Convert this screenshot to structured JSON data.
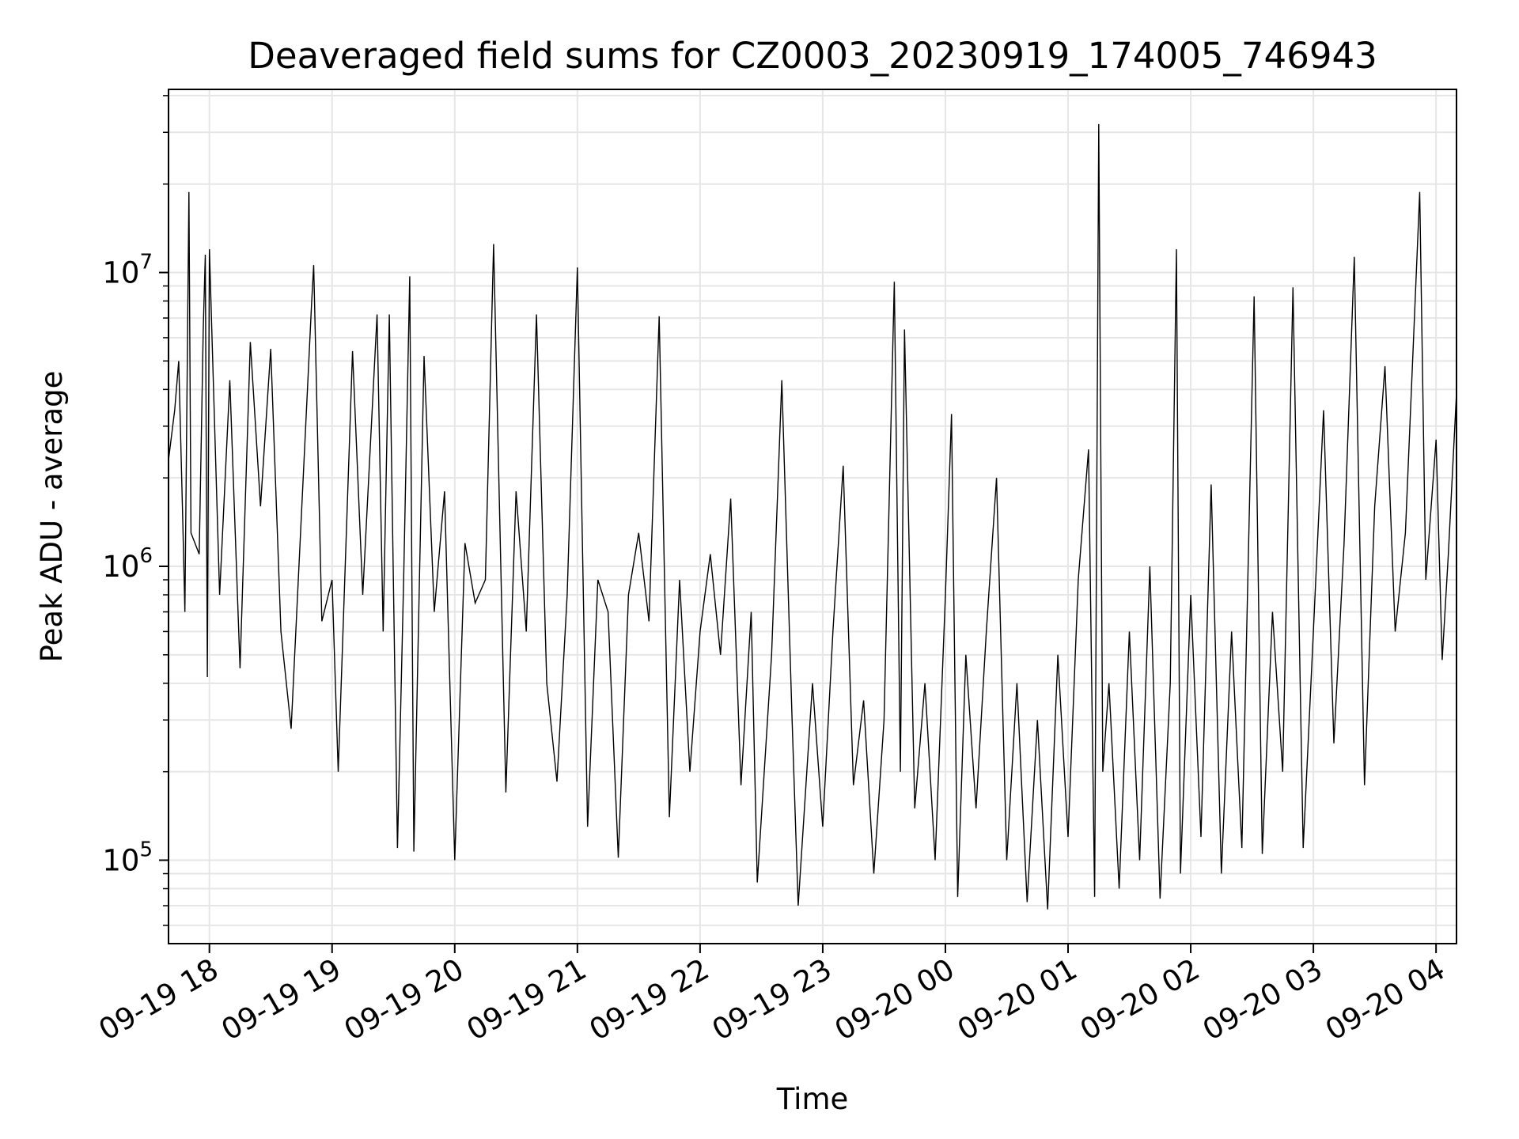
{
  "chart_data": {
    "type": "line",
    "title": "Deaveraged field sums for CZ0003_20230919_174005_746943",
    "xlabel": "Time",
    "ylabel": "Peak ADU - average",
    "x_range": [
      "2023-09-19 17:40",
      "2023-09-20 04:10"
    ],
    "x_ticks": [
      "09-19 18",
      "09-19 19",
      "09-19 20",
      "09-19 21",
      "09-19 22",
      "09-19 23",
      "09-20 00",
      "09-20 01",
      "09-20 02",
      "09-20 03",
      "09-20 04"
    ],
    "y_scale": "log",
    "y_range": [
      52000,
      42000000
    ],
    "y_ticks": [
      {
        "base": "10",
        "exp": "5"
      },
      {
        "base": "10",
        "exp": "6"
      },
      {
        "base": "10",
        "exp": "7"
      }
    ],
    "grid": true,
    "line_color": "#000000",
    "grid_color": "#e6e6e6",
    "series": [
      {
        "points": [
          [
            "2023-09-19 17:40",
            2300000
          ],
          [
            "2023-09-19 17:43",
            3400000
          ],
          [
            "2023-09-19 17:45",
            5000000
          ],
          [
            "2023-09-19 17:47",
            1400000
          ],
          [
            "2023-09-19 17:48",
            700000
          ],
          [
            "2023-09-19 17:50",
            18800000
          ],
          [
            "2023-09-19 17:51",
            1300000
          ],
          [
            "2023-09-19 17:55",
            1100000
          ],
          [
            "2023-09-19 17:57",
            6400000
          ],
          [
            "2023-09-19 17:58",
            11500000
          ],
          [
            "2023-09-19 17:59",
            420000
          ],
          [
            "2023-09-19 18:00",
            12000000
          ],
          [
            "2023-09-19 18:05",
            800000
          ],
          [
            "2023-09-19 18:10",
            4300000
          ],
          [
            "2023-09-19 18:15",
            450000
          ],
          [
            "2023-09-19 18:20",
            5800000
          ],
          [
            "2023-09-19 18:25",
            1600000
          ],
          [
            "2023-09-19 18:30",
            5500000
          ],
          [
            "2023-09-19 18:35",
            600000
          ],
          [
            "2023-09-19 18:40",
            280000
          ],
          [
            "2023-09-19 18:45",
            1500000
          ],
          [
            "2023-09-19 18:50",
            7900000
          ],
          [
            "2023-09-19 18:51",
            10600000
          ],
          [
            "2023-09-19 18:55",
            650000
          ],
          [
            "2023-09-19 19:00",
            900000
          ],
          [
            "2023-09-19 19:03",
            200000
          ],
          [
            "2023-09-19 19:10",
            5400000
          ],
          [
            "2023-09-19 19:15",
            800000
          ],
          [
            "2023-09-19 19:22",
            7200000
          ],
          [
            "2023-09-19 19:25",
            600000
          ],
          [
            "2023-09-19 19:28",
            7200000
          ],
          [
            "2023-09-19 19:32",
            110000
          ],
          [
            "2023-09-19 19:35",
            900000
          ],
          [
            "2023-09-19 19:38",
            9700000
          ],
          [
            "2023-09-19 19:40",
            107000
          ],
          [
            "2023-09-19 19:45",
            5200000
          ],
          [
            "2023-09-19 19:50",
            700000
          ],
          [
            "2023-09-19 19:55",
            1800000
          ],
          [
            "2023-09-19 20:00",
            100000
          ],
          [
            "2023-09-19 20:05",
            1200000
          ],
          [
            "2023-09-19 20:10",
            750000
          ],
          [
            "2023-09-19 20:15",
            900000
          ],
          [
            "2023-09-19 20:19",
            12500000
          ],
          [
            "2023-09-19 20:25",
            170000
          ],
          [
            "2023-09-19 20:30",
            1800000
          ],
          [
            "2023-09-19 20:35",
            600000
          ],
          [
            "2023-09-19 20:40",
            7200000
          ],
          [
            "2023-09-19 20:45",
            400000
          ],
          [
            "2023-09-19 20:50",
            185000
          ],
          [
            "2023-09-19 20:55",
            800000
          ],
          [
            "2023-09-19 21:00",
            10400000
          ],
          [
            "2023-09-19 21:05",
            130000
          ],
          [
            "2023-09-19 21:10",
            900000
          ],
          [
            "2023-09-19 21:15",
            700000
          ],
          [
            "2023-09-19 21:20",
            102000
          ],
          [
            "2023-09-19 21:25",
            800000
          ],
          [
            "2023-09-19 21:30",
            1300000
          ],
          [
            "2023-09-19 21:35",
            650000
          ],
          [
            "2023-09-19 21:40",
            7100000
          ],
          [
            "2023-09-19 21:45",
            140000
          ],
          [
            "2023-09-19 21:50",
            900000
          ],
          [
            "2023-09-19 21:55",
            200000
          ],
          [
            "2023-09-19 22:00",
            600000
          ],
          [
            "2023-09-19 22:05",
            1100000
          ],
          [
            "2023-09-19 22:10",
            500000
          ],
          [
            "2023-09-19 22:15",
            1700000
          ],
          [
            "2023-09-19 22:20",
            180000
          ],
          [
            "2023-09-19 22:25",
            700000
          ],
          [
            "2023-09-19 22:28",
            84000
          ],
          [
            "2023-09-19 22:35",
            500000
          ],
          [
            "2023-09-19 22:40",
            4300000
          ],
          [
            "2023-09-19 22:45",
            300000
          ],
          [
            "2023-09-19 22:48",
            70000
          ],
          [
            "2023-09-19 22:55",
            400000
          ],
          [
            "2023-09-19 23:00",
            130000
          ],
          [
            "2023-09-19 23:05",
            600000
          ],
          [
            "2023-09-19 23:10",
            2200000
          ],
          [
            "2023-09-19 23:15",
            180000
          ],
          [
            "2023-09-19 23:20",
            350000
          ],
          [
            "2023-09-19 23:25",
            90000
          ],
          [
            "2023-09-19 23:30",
            300000
          ],
          [
            "2023-09-19 23:35",
            9300000
          ],
          [
            "2023-09-19 23:38",
            200000
          ],
          [
            "2023-09-19 23:40",
            6400000
          ],
          [
            "2023-09-19 23:45",
            150000
          ],
          [
            "2023-09-19 23:50",
            400000
          ],
          [
            "2023-09-19 23:55",
            100000
          ],
          [
            "2023-09-20 00:00",
            800000
          ],
          [
            "2023-09-20 00:03",
            3300000
          ],
          [
            "2023-09-20 00:06",
            75000
          ],
          [
            "2023-09-20 00:10",
            500000
          ],
          [
            "2023-09-20 00:15",
            150000
          ],
          [
            "2023-09-20 00:20",
            600000
          ],
          [
            "2023-09-20 00:25",
            2000000
          ],
          [
            "2023-09-20 00:30",
            100000
          ],
          [
            "2023-09-20 00:35",
            400000
          ],
          [
            "2023-09-20 00:40",
            72000
          ],
          [
            "2023-09-20 00:45",
            300000
          ],
          [
            "2023-09-20 00:50",
            68000
          ],
          [
            "2023-09-20 00:55",
            500000
          ],
          [
            "2023-09-20 01:00",
            120000
          ],
          [
            "2023-09-20 01:05",
            900000
          ],
          [
            "2023-09-20 01:10",
            2500000
          ],
          [
            "2023-09-20 01:13",
            75000
          ],
          [
            "2023-09-20 01:15",
            32000000
          ],
          [
            "2023-09-20 01:17",
            200000
          ],
          [
            "2023-09-20 01:20",
            400000
          ],
          [
            "2023-09-20 01:25",
            80000
          ],
          [
            "2023-09-20 01:30",
            600000
          ],
          [
            "2023-09-20 01:35",
            100000
          ],
          [
            "2023-09-20 01:40",
            1000000
          ],
          [
            "2023-09-20 01:45",
            74000
          ],
          [
            "2023-09-20 01:50",
            400000
          ],
          [
            "2023-09-20 01:53",
            12000000
          ],
          [
            "2023-09-20 01:55",
            90000
          ],
          [
            "2023-09-20 02:00",
            800000
          ],
          [
            "2023-09-20 02:05",
            120000
          ],
          [
            "2023-09-20 02:10",
            1900000
          ],
          [
            "2023-09-20 02:15",
            90000
          ],
          [
            "2023-09-20 02:20",
            600000
          ],
          [
            "2023-09-20 02:25",
            110000
          ],
          [
            "2023-09-20 02:31",
            8300000
          ],
          [
            "2023-09-20 02:35",
            105000
          ],
          [
            "2023-09-20 02:40",
            700000
          ],
          [
            "2023-09-20 02:45",
            200000
          ],
          [
            "2023-09-20 02:50",
            8900000
          ],
          [
            "2023-09-20 02:55",
            110000
          ],
          [
            "2023-09-20 03:00",
            600000
          ],
          [
            "2023-09-20 03:05",
            3400000
          ],
          [
            "2023-09-20 03:10",
            250000
          ],
          [
            "2023-09-20 03:15",
            1200000
          ],
          [
            "2023-09-20 03:20",
            11300000
          ],
          [
            "2023-09-20 03:25",
            180000
          ],
          [
            "2023-09-20 03:30",
            1600000
          ],
          [
            "2023-09-20 03:35",
            4800000
          ],
          [
            "2023-09-20 03:40",
            600000
          ],
          [
            "2023-09-20 03:45",
            1300000
          ],
          [
            "2023-09-20 03:52",
            18800000
          ],
          [
            "2023-09-20 03:55",
            900000
          ],
          [
            "2023-09-20 04:00",
            2700000
          ],
          [
            "2023-09-20 04:03",
            480000
          ],
          [
            "2023-09-20 04:06",
            1100000
          ],
          [
            "2023-09-20 04:10",
            3900000
          ]
        ]
      }
    ]
  }
}
